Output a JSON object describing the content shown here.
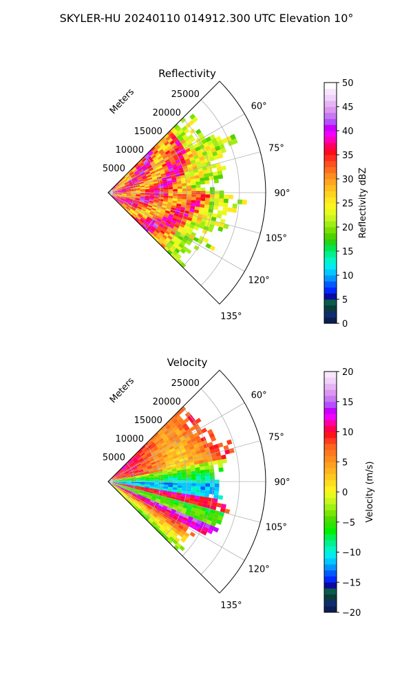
{
  "figure": {
    "title": "SKYLER-HU  20240110  014912.300 UTC Elevation 10°"
  },
  "chart_data": [
    {
      "type": "heatmap",
      "title": "Reflectivity",
      "radial_label": "Meters",
      "range_ticks": [
        "5000",
        "10000",
        "15000",
        "20000",
        "25000"
      ],
      "range_values": [
        5000,
        10000,
        15000,
        20000,
        25000
      ],
      "rmax": 30000,
      "azimuth_ticks": [
        "60°",
        "75°",
        "90°",
        "105°",
        "120°",
        "135°"
      ],
      "azimuth_values": [
        60,
        75,
        90,
        105,
        120,
        135
      ],
      "azimuth_range": [
        45,
        135
      ],
      "grid": true,
      "colorbar": {
        "label": "Reflectivity dBZ",
        "min": 0,
        "max": 50,
        "ticks": [
          "0",
          "5",
          "10",
          "15",
          "20",
          "25",
          "30",
          "35",
          "40",
          "45",
          "50"
        ],
        "tick_values": [
          0,
          5,
          10,
          15,
          20,
          25,
          30,
          35,
          40,
          45,
          50
        ],
        "colors": [
          "#0a1e50",
          "#0f2d6e",
          "#0a3c3c",
          "#0b5a4a",
          "#0a0aa0",
          "#0028ff",
          "#005aff",
          "#0096ff",
          "#00c8ff",
          "#00ecf0",
          "#00f5c8",
          "#00f090",
          "#00e650",
          "#28d214",
          "#50d200",
          "#78e100",
          "#a0ec14",
          "#c8f51e",
          "#e6fa1e",
          "#faf51e",
          "#ffe61e",
          "#ffd21e",
          "#ffbe1e",
          "#ffa51e",
          "#ff8c1e",
          "#ff6e1e",
          "#ff501e",
          "#ff2d1e",
          "#ff0a1e",
          "#ff0064",
          "#ff00b4",
          "#f000ff",
          "#c800ff",
          "#b450ff",
          "#c878f0",
          "#dc96f0",
          "#e6b4f5",
          "#f0d2fa",
          "#f8e6fc",
          "#ffffff"
        ]
      },
      "field": "reflectivity"
    },
    {
      "type": "heatmap",
      "title": "Velocity",
      "radial_label": "Meters",
      "range_ticks": [
        "5000",
        "10000",
        "15000",
        "20000",
        "25000"
      ],
      "range_values": [
        5000,
        10000,
        15000,
        20000,
        25000
      ],
      "rmax": 30000,
      "azimuth_ticks": [
        "60°",
        "75°",
        "90°",
        "105°",
        "120°",
        "135°"
      ],
      "azimuth_values": [
        60,
        75,
        90,
        105,
        120,
        135
      ],
      "azimuth_range": [
        45,
        135
      ],
      "grid": true,
      "colorbar": {
        "label": "Velocity (m/s)",
        "min": -20,
        "max": 20,
        "ticks": [
          "−20",
          "−15",
          "−10",
          "−5",
          "0",
          "5",
          "10",
          "15",
          "20"
        ],
        "tick_values": [
          -20,
          -15,
          -10,
          -5,
          0,
          5,
          10,
          15,
          20
        ],
        "colors": [
          "#0a1e50",
          "#0f2d6e",
          "#0a3c3c",
          "#0b5a4a",
          "#0a0aa0",
          "#0028ff",
          "#005aff",
          "#0096ff",
          "#00c8ff",
          "#00ecf0",
          "#00f5c8",
          "#00f090",
          "#00f050",
          "#00f000",
          "#28e600",
          "#50dc00",
          "#78e600",
          "#a0f014",
          "#c8f51e",
          "#e6fa1e",
          "#fff01e",
          "#ffdc1e",
          "#ffc81e",
          "#ffb41e",
          "#ffa01e",
          "#ff8c1e",
          "#ff781e",
          "#ff641e",
          "#ff3c1e",
          "#ff141e",
          "#ff0050",
          "#ff00a0",
          "#f000ff",
          "#c800ff",
          "#b450ff",
          "#c878f0",
          "#dc96f0",
          "#e6b4f5",
          "#f0d2fa",
          "#f8e6fc"
        ]
      },
      "field": "velocity"
    }
  ]
}
